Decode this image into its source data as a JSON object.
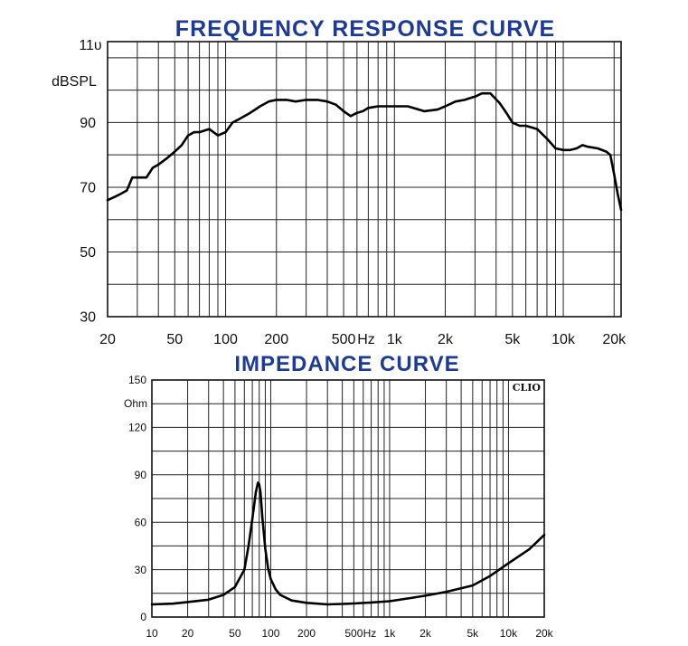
{
  "chart_data": [
    {
      "type": "line",
      "title": "FREQUENCY RESPONSE CURVE",
      "unit_label": "dBSPL",
      "unit_label_replaces_tick": 110,
      "top_tick_label": "11υ",
      "x_scale": "log",
      "xlim": [
        20,
        22000
      ],
      "ylim": [
        30,
        115
      ],
      "y_ticks": [
        30,
        50,
        70,
        90
      ],
      "y_grid": [
        30,
        40,
        50,
        60,
        70,
        80,
        90,
        100,
        110
      ],
      "x_tick_labels": [
        {
          "value": 20,
          "label": "20"
        },
        {
          "value": 50,
          "label": "50"
        },
        {
          "value": 100,
          "label": "100"
        },
        {
          "value": 200,
          "label": "200"
        },
        {
          "value": 500,
          "label": "500"
        },
        {
          "value": 680,
          "label": "Hz"
        },
        {
          "value": 1000,
          "label": "1k"
        },
        {
          "value": 2000,
          "label": "2k"
        },
        {
          "value": 5000,
          "label": "5k"
        },
        {
          "value": 10000,
          "label": "10k"
        },
        {
          "value": 20000,
          "label": "20k"
        }
      ],
      "grid": true,
      "series": [
        {
          "x": [
            20,
            22,
            24,
            26,
            28,
            30,
            34,
            37,
            40,
            45,
            50,
            55,
            60,
            65,
            70,
            80,
            90,
            100,
            110,
            120,
            140,
            160,
            180,
            200,
            230,
            260,
            300,
            350,
            400,
            450,
            500,
            550,
            600,
            650,
            700,
            800,
            900,
            1000,
            1200,
            1500,
            1800,
            2000,
            2300,
            2600,
            3000,
            3300,
            3700,
            4200,
            4600,
            5000,
            5500,
            6000,
            7000,
            8000,
            9000,
            10000,
            11000,
            12000,
            13000,
            14000,
            16000,
            18000,
            19000,
            20000,
            21000,
            22000
          ],
          "values": [
            66,
            67,
            68,
            69,
            73,
            73,
            73,
            76,
            77,
            79,
            81,
            83,
            86,
            87,
            87,
            88,
            86,
            87,
            90,
            91,
            93,
            95,
            96.5,
            97,
            97,
            96.5,
            97,
            97,
            96.5,
            95.5,
            93.5,
            92,
            93,
            93.5,
            94.5,
            95,
            95,
            95,
            95,
            93.5,
            94,
            95,
            96.5,
            97,
            98,
            99,
            99,
            96,
            93,
            90,
            89,
            89,
            88,
            85,
            82,
            81.5,
            81.5,
            82,
            83,
            82.5,
            82,
            81,
            80,
            74,
            68,
            63
          ]
        }
      ]
    },
    {
      "type": "line",
      "title": "IMPEDANCE CURVE",
      "unit_label": "Ohm",
      "unit_label_replaces_tick": 135,
      "badge": "CLIO",
      "x_scale": "log",
      "xlim": [
        10,
        20000
      ],
      "ylim": [
        0,
        150
      ],
      "y_ticks": [
        0,
        30,
        60,
        90,
        120,
        150
      ],
      "y_grid": [
        0,
        15,
        30,
        45,
        60,
        75,
        90,
        105,
        120,
        135,
        150
      ],
      "x_tick_labels": [
        {
          "value": 10,
          "label": "10"
        },
        {
          "value": 20,
          "label": "20"
        },
        {
          "value": 50,
          "label": "50"
        },
        {
          "value": 100,
          "label": "100"
        },
        {
          "value": 200,
          "label": "200"
        },
        {
          "value": 500,
          "label": "500"
        },
        {
          "value": 680,
          "label": "Hz"
        },
        {
          "value": 1000,
          "label": "1k"
        },
        {
          "value": 2000,
          "label": "2k"
        },
        {
          "value": 5000,
          "label": "5k"
        },
        {
          "value": 10000,
          "label": "10k"
        },
        {
          "value": 20000,
          "label": "20k"
        }
      ],
      "grid": true,
      "series": [
        {
          "x": [
            10,
            15,
            20,
            30,
            40,
            50,
            60,
            65,
            70,
            75,
            78,
            80,
            82,
            85,
            90,
            95,
            100,
            110,
            120,
            150,
            200,
            300,
            400,
            500,
            700,
            1000,
            1500,
            2000,
            3000,
            5000,
            7000,
            10000,
            15000,
            20000
          ],
          "values": [
            8,
            8.5,
            9.5,
            11,
            14,
            19,
            30,
            45,
            62,
            79,
            85,
            84,
            79,
            63,
            43,
            31,
            24,
            17.5,
            14,
            10.5,
            9,
            8,
            8.3,
            8.6,
            9.2,
            10,
            12,
            13.5,
            16,
            20,
            26,
            34,
            43,
            52
          ]
        }
      ]
    }
  ]
}
